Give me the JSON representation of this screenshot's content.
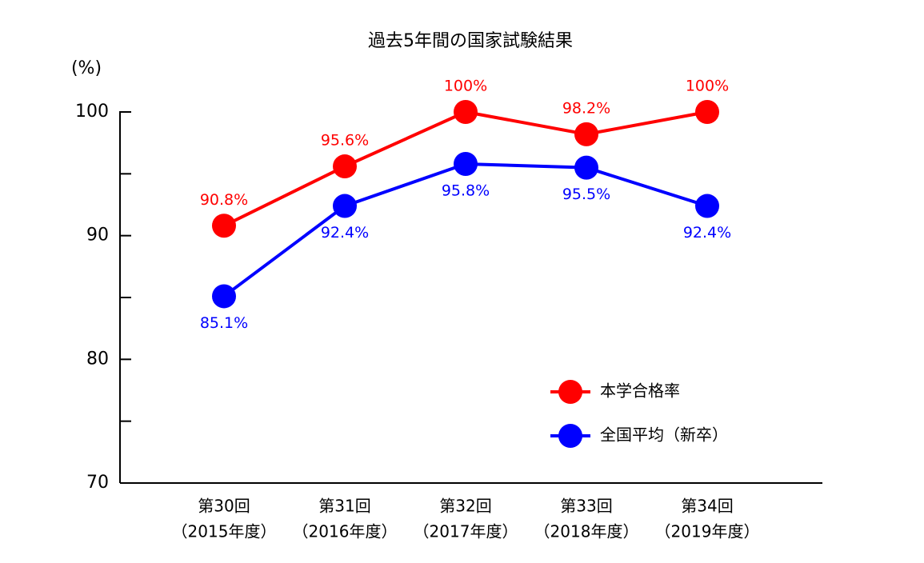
{
  "chart_data": {
    "type": "line",
    "title": "過去5年間の国家試験結果",
    "ylabel": "(%)",
    "categories": [
      [
        "第30回",
        "（2015年度）"
      ],
      [
        "第31回",
        "（2016年度）"
      ],
      [
        "第32回",
        "（2017年度）"
      ],
      [
        "第33回",
        "（2018年度）"
      ],
      [
        "第34回",
        "（2019年度）"
      ]
    ],
    "series": [
      {
        "name": "本学合格率",
        "color": "#ff0000",
        "values": [
          90.8,
          95.6,
          100,
          98.2,
          100
        ],
        "value_labels": [
          "90.8%",
          "95.6%",
          "100%",
          "98.2%",
          "100%"
        ],
        "label_position": "above"
      },
      {
        "name": "全国平均（新卒）",
        "color": "#0000ff",
        "values": [
          85.1,
          92.4,
          95.8,
          95.5,
          92.4
        ],
        "value_labels": [
          "85.1%",
          "92.4%",
          "95.8%",
          "95.5%",
          "92.4%"
        ],
        "label_position": "below"
      }
    ],
    "ylim": [
      70,
      100
    ],
    "yticks": [
      70,
      80,
      90,
      100
    ],
    "yminor_ticks": [
      75,
      85,
      95
    ],
    "grid": false,
    "legend": "lower right"
  }
}
